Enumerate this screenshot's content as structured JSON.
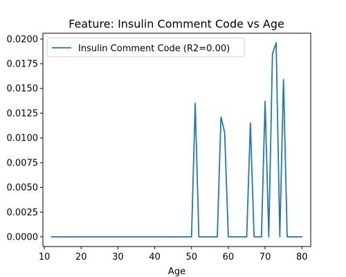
{
  "chart_data": {
    "type": "line",
    "title": "Feature: Insulin Comment Code vs Age",
    "xlabel": "Age",
    "ylabel": "",
    "xlim": [
      9.6,
      82.4
    ],
    "ylim": [
      -0.00098,
      0.02058
    ],
    "xticks": [
      10,
      20,
      30,
      40,
      50,
      60,
      70,
      80
    ],
    "yticks": [
      0.0,
      0.0025,
      0.005,
      0.0075,
      0.01,
      0.0125,
      0.015,
      0.0175,
      0.02
    ],
    "ytick_labels": [
      "0.0000",
      "0.0025",
      "0.0050",
      "0.0075",
      "0.0100",
      "0.0125",
      "0.0150",
      "0.0175",
      "0.0200"
    ],
    "grid": false,
    "legend_position": "top-left",
    "series": [
      {
        "name": "Insulin Comment Code (R2=0.00)",
        "color": "#1f77b4",
        "x": [
          12,
          20,
          30,
          40,
          50,
          51,
          52,
          53,
          57,
          58,
          59,
          60,
          65,
          66,
          67,
          69,
          70,
          71,
          72,
          73,
          74,
          75,
          76,
          77,
          80
        ],
        "y": [
          0,
          0,
          0,
          0,
          0,
          0.0135,
          0,
          0,
          0,
          0.0121,
          0.0106,
          0,
          0,
          0.0115,
          0,
          0,
          0.0137,
          0,
          0.0185,
          0.0196,
          0,
          0.0159,
          0,
          0,
          0
        ]
      }
    ]
  }
}
